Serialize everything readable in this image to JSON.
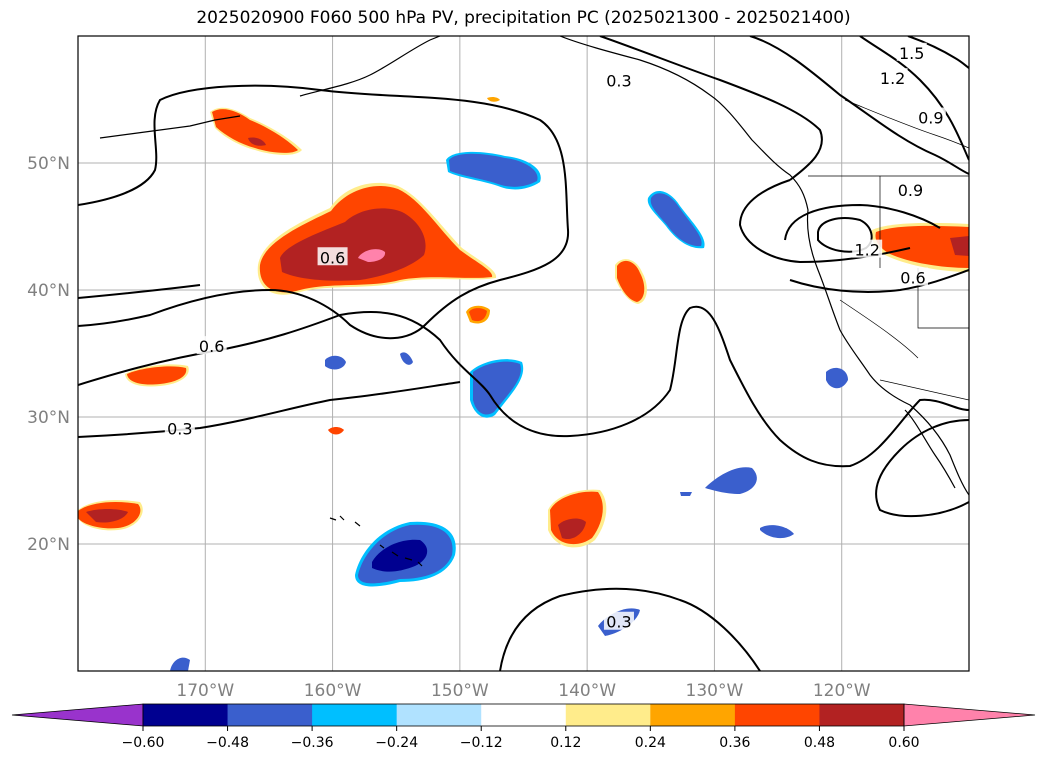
{
  "title": "2025020900 F060 500 hPa PV, precipitation PC (2025021300 - 2025021400)",
  "map": {
    "lon_range": [
      -180,
      -110
    ],
    "lat_range": [
      10,
      60
    ],
    "lat_labels": [
      "50°N",
      "40°N",
      "30°N",
      "20°N"
    ],
    "lat_values": [
      50,
      40,
      30,
      20
    ],
    "lon_labels": [
      "170°W",
      "160°W",
      "150°W",
      "140°W",
      "130°W",
      "120°W"
    ],
    "lon_values": [
      -170,
      -160,
      -150,
      -140,
      -130,
      -120
    ],
    "gridlines": true
  },
  "contours": {
    "color": "#000000",
    "labels": [
      {
        "text": "0.6",
        "lon": -160,
        "lat": 42.5
      },
      {
        "text": "0.6",
        "lon": -169.5,
        "lat": 35.5
      },
      {
        "text": "0.3",
        "lon": -172,
        "lat": 29
      },
      {
        "text": "0.3",
        "lon": -137.5,
        "lat": 13.8
      },
      {
        "text": "0.3",
        "lon": -137.5,
        "lat": 56.4
      },
      {
        "text": "1.2",
        "lon": -116,
        "lat": 56.6
      },
      {
        "text": "1.5",
        "lon": -114.5,
        "lat": 58.6
      },
      {
        "text": "0.9",
        "lon": -113,
        "lat": 53.5
      },
      {
        "text": "0.9",
        "lon": -114.6,
        "lat": 47.8
      },
      {
        "text": "1.2",
        "lon": -118,
        "lat": 43.1
      },
      {
        "text": "0.6",
        "lon": -114.4,
        "lat": 40.9
      }
    ]
  },
  "colorbar": {
    "ticks": [
      "−0.60",
      "−0.48",
      "−0.36",
      "−0.24",
      "−0.12",
      "0.12",
      "0.24",
      "0.36",
      "0.48",
      "0.60"
    ],
    "colors": [
      "#9933cc",
      "#000090",
      "#3a5fcd",
      "#00bfff",
      "#b0e2ff",
      "#ffffff",
      "#ffec8b",
      "#ffa500",
      "#ff4500",
      "#b22222",
      "#ff82ab"
    ]
  }
}
